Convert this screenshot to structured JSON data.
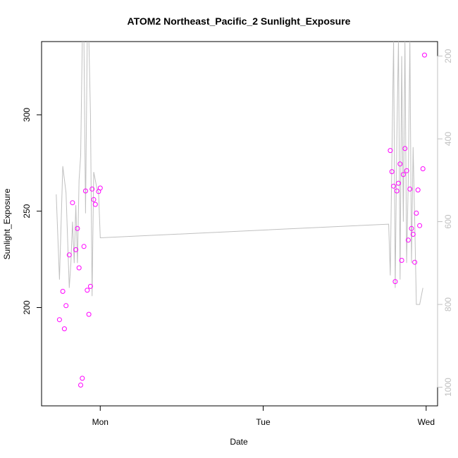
{
  "chart_data": {
    "type": "scatter",
    "title": "ATOM2 Northeast_Pacific_2 Sunlight_Exposure",
    "xlabel": "Date",
    "ylabel": "Sunlight_Exposure",
    "x_ticks": [
      {
        "label": "Mon",
        "value": 1.0
      },
      {
        "label": "Tue",
        "value": 2.0
      },
      {
        "label": "Wed",
        "value": 3.0
      }
    ],
    "xlim": [
      0.64,
      3.07
    ],
    "y_left": {
      "ylim": [
        149,
        338
      ],
      "ticks": [
        200,
        250,
        300
      ]
    },
    "y_right": {
      "ylim": [
        1045,
        165
      ],
      "ticks": [
        200,
        400,
        600,
        800,
        1000
      ],
      "reversed": true
    },
    "grid": false,
    "series": [
      {
        "role": "points",
        "axis": "left",
        "color": "#ff00ff",
        "marker": "open-circle",
        "points": [
          [
            0.75,
            193.7
          ],
          [
            0.77,
            208.4
          ],
          [
            0.78,
            189.0
          ],
          [
            0.79,
            201.0
          ],
          [
            0.81,
            227.3
          ],
          [
            0.83,
            254.4
          ],
          [
            0.85,
            230.0
          ],
          [
            0.86,
            241.0
          ],
          [
            0.87,
            220.6
          ],
          [
            0.88,
            159.8
          ],
          [
            0.89,
            163.3
          ],
          [
            0.9,
            231.7
          ],
          [
            0.91,
            260.5
          ],
          [
            0.92,
            209.0
          ],
          [
            0.93,
            196.5
          ],
          [
            0.94,
            211.0
          ],
          [
            0.95,
            261.5
          ],
          [
            0.96,
            256.0
          ],
          [
            0.97,
            253.5
          ],
          [
            0.99,
            260.2
          ],
          [
            1.0,
            262.0
          ],
          [
            2.78,
            281.5
          ],
          [
            2.79,
            270.5
          ],
          [
            2.8,
            263.0
          ],
          [
            2.81,
            213.5
          ],
          [
            2.82,
            260.5
          ],
          [
            2.83,
            264.5
          ],
          [
            2.84,
            274.5
          ],
          [
            2.85,
            224.5
          ],
          [
            2.86,
            269.0
          ],
          [
            2.87,
            282.5
          ],
          [
            2.88,
            271.0
          ],
          [
            2.89,
            235.0
          ],
          [
            2.9,
            261.5
          ],
          [
            2.91,
            241.0
          ],
          [
            2.92,
            238.0
          ],
          [
            2.93,
            223.5
          ],
          [
            2.94,
            249.0
          ],
          [
            2.95,
            261.0
          ],
          [
            2.96,
            242.5
          ],
          [
            2.98,
            272.0
          ],
          [
            2.99,
            331.0
          ]
        ]
      },
      {
        "role": "line",
        "axis": "right",
        "color": "#c0c0c0",
        "points": [
          [
            0.73,
            534
          ],
          [
            0.75,
            740
          ],
          [
            0.77,
            466
          ],
          [
            0.79,
            530
          ],
          [
            0.81,
            760
          ],
          [
            0.82,
            700
          ],
          [
            0.83,
            600
          ],
          [
            0.84,
            700
          ],
          [
            0.85,
            560
          ],
          [
            0.86,
            700
          ],
          [
            0.87,
            500
          ],
          [
            0.88,
            440
          ],
          [
            0.89,
            160
          ],
          [
            0.9,
            160
          ],
          [
            0.91,
            580
          ],
          [
            0.92,
            160
          ],
          [
            0.93,
            160
          ],
          [
            0.94,
            340
          ],
          [
            0.95,
            780
          ],
          [
            0.96,
            480
          ],
          [
            0.97,
            500
          ],
          [
            0.98,
            520
          ],
          [
            0.99,
            530
          ],
          [
            1.0,
            639
          ],
          [
            2.77,
            606
          ],
          [
            2.78,
            730
          ],
          [
            2.79,
            440
          ],
          [
            2.8,
            160
          ],
          [
            2.81,
            760
          ],
          [
            2.82,
            400
          ],
          [
            2.83,
            160
          ],
          [
            2.84,
            740
          ],
          [
            2.85,
            200
          ],
          [
            2.86,
            600
          ],
          [
            2.87,
            160
          ],
          [
            2.88,
            700
          ],
          [
            2.89,
            500
          ],
          [
            2.9,
            160
          ],
          [
            2.91,
            700
          ],
          [
            2.92,
            420
          ],
          [
            2.93,
            600
          ],
          [
            2.94,
            800
          ],
          [
            2.95,
            800
          ],
          [
            2.96,
            800
          ],
          [
            2.97,
            780
          ],
          [
            2.98,
            760
          ]
        ]
      }
    ]
  }
}
